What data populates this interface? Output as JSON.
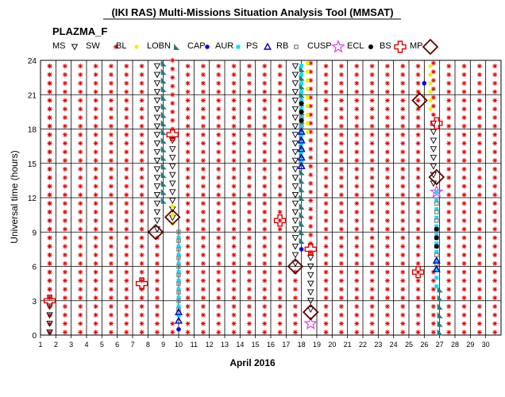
{
  "chart_data": {
    "type": "scatter",
    "title": "(IKI RAS) Multi-Missions Situation Analysis Tool (MMSAT)",
    "subtitle": "PLAZMA_F",
    "xlabel": "April 2016",
    "ylabel": "Universal time (hours)",
    "xlim": [
      1,
      31
    ],
    "ylim": [
      0,
      24
    ],
    "xticks": [
      1,
      2,
      3,
      4,
      5,
      6,
      7,
      8,
      9,
      10,
      11,
      12,
      13,
      14,
      15,
      16,
      17,
      18,
      19,
      20,
      21,
      22,
      23,
      24,
      25,
      26,
      27,
      28,
      29,
      30
    ],
    "yticks": [
      0,
      3,
      6,
      9,
      12,
      15,
      18,
      21,
      24
    ],
    "grid": true,
    "legend_position": "top",
    "legend": [
      {
        "label": "MS",
        "color": "#000000"
      },
      {
        "label": "SW",
        "color": "#e00000"
      },
      {
        "label": "BL",
        "color": "#f0f000"
      },
      {
        "label": "LOBN",
        "color": "#2a7a7a"
      },
      {
        "label": "CAP",
        "color": "#0000ff"
      },
      {
        "label": "AUR",
        "color": "#00e0ff"
      },
      {
        "label": "PS",
        "color": "#0000c0"
      },
      {
        "label": "RB",
        "color": "#888888"
      },
      {
        "label": "CUSP",
        "color": "#e040e0"
      },
      {
        "label": "ECL",
        "color": "#000000"
      },
      {
        "label": "BS",
        "color": "#e00000"
      },
      {
        "label": "MP",
        "color": "#600000"
      }
    ],
    "sw_days": [
      1.6,
      2.6,
      3.6,
      4.6,
      5.6,
      6.6,
      7.6,
      10.6,
      11.6,
      12.6,
      13.6,
      14.6,
      15.6,
      16.6,
      19.6,
      20.6,
      21.6,
      22.6,
      23.6,
      24.6,
      25.6,
      27.6,
      28.6,
      29.6,
      30.6
    ],
    "series": [
      {
        "name": "MS",
        "segments": [
          {
            "x": 1.6,
            "y": [
              0,
              3
            ]
          },
          {
            "x": 8.6,
            "y": [
              9,
              24
            ]
          },
          {
            "x": 9.6,
            "y": [
              10,
              17
            ]
          },
          {
            "x": 17.6,
            "y": [
              6,
              24
            ]
          },
          {
            "x": 18.6,
            "y": [
              2,
              7
            ]
          },
          {
            "x": 26.6,
            "y": [
              13,
              19
            ]
          }
        ]
      },
      {
        "name": "SW",
        "segments": [
          {
            "x": 1.6,
            "y": [
              3,
              24
            ]
          },
          {
            "x": 8.6,
            "y": [
              0,
              9
            ]
          },
          {
            "x": 9.6,
            "y": [
              17,
              24
            ]
          },
          {
            "x": 9.6,
            "y": [
              0,
              1.5
            ]
          },
          {
            "x": 17.6,
            "y": [
              0,
              6
            ]
          },
          {
            "x": 18.6,
            "y": [
              7,
              24
            ]
          },
          {
            "x": 26.6,
            "y": [
              19,
              24
            ]
          },
          {
            "x": 26.6,
            "y": [
              0,
              5.5
            ]
          }
        ]
      },
      {
        "name": "BL",
        "segments": [
          {
            "x": 9.6,
            "y": [
              9.5,
              11.5
            ]
          },
          {
            "x": 18.4,
            "y": [
              17.5,
              24
            ]
          },
          {
            "x": 26.4,
            "y": [
              19.5,
              24
            ]
          }
        ]
      },
      {
        "name": "LOBN",
        "segments": [
          {
            "x": 9.0,
            "y": [
              11.5,
              24
            ]
          },
          {
            "x": 18.0,
            "y": [
              8,
              23.5
            ]
          },
          {
            "x": 27.0,
            "y": [
              0,
              4
            ]
          }
        ]
      },
      {
        "name": "CAP",
        "points": [
          {
            "x": 10.0,
            "y": 0.5
          },
          {
            "x": 18.0,
            "y": 7.5
          },
          {
            "x": 26.0,
            "y": 22
          }
        ]
      },
      {
        "name": "AUR",
        "segments": [
          {
            "x": 10.0,
            "y": [
              1.5,
              9
            ]
          },
          {
            "x": 18.0,
            "y": [
              15,
              23.5
            ]
          },
          {
            "x": 26.8,
            "y": [
              4,
              12.5
            ]
          }
        ]
      },
      {
        "name": "PS",
        "segments": [
          {
            "x": 18.0,
            "y": [
              14.5,
              18
            ]
          },
          {
            "x": 10.0,
            "y": [
              1,
              2
            ]
          },
          {
            "x": 26.8,
            "y": [
              5.5,
              6.5
            ]
          }
        ]
      },
      {
        "name": "RB",
        "segments": [
          {
            "x": 10.0,
            "y": [
              2,
              9
            ]
          },
          {
            "x": 18.0,
            "y": [
              18,
              19.5
            ]
          },
          {
            "x": 26.8,
            "y": [
              6,
              12
            ]
          }
        ]
      },
      {
        "name": "CUSP",
        "points": [
          {
            "x": 18.6,
            "y": 1
          },
          {
            "x": 26.8,
            "y": 12.5
          }
        ]
      },
      {
        "name": "ECL",
        "segments": [
          {
            "x": 18.0,
            "y": [
              18.5,
              20.5
            ]
          },
          {
            "x": 26.8,
            "y": [
              7.5,
              9.5
            ]
          }
        ]
      },
      {
        "name": "BS",
        "points": [
          {
            "x": 1.6,
            "y": 3
          },
          {
            "x": 7.6,
            "y": 4.5
          },
          {
            "x": 9.6,
            "y": 17.5
          },
          {
            "x": 16.6,
            "y": 10
          },
          {
            "x": 18.6,
            "y": 7.5
          },
          {
            "x": 25.6,
            "y": 5.5
          },
          {
            "x": 26.8,
            "y": 18.5
          }
        ]
      },
      {
        "name": "MP",
        "points": [
          {
            "x": 8.5,
            "y": 9
          },
          {
            "x": 9.6,
            "y": 10.3
          },
          {
            "x": 17.6,
            "y": 6
          },
          {
            "x": 18.6,
            "y": 2
          },
          {
            "x": 25.7,
            "y": 20.5
          },
          {
            "x": 26.8,
            "y": 13.8
          }
        ]
      }
    ]
  }
}
